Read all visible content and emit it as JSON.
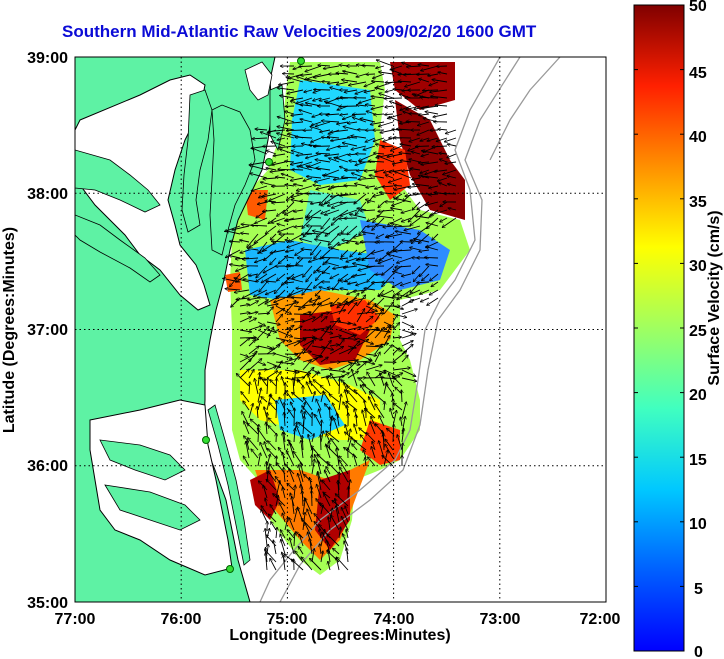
{
  "title": "Southern Mid-Atlantic Raw Velocities 2009/02/20 1600 GMT",
  "xaxis": {
    "label": "Longitude (Degrees:Minutes)",
    "ticks": [
      "77:00",
      "76:00",
      "75:00",
      "74:00",
      "73:00",
      "72:00"
    ],
    "range": [
      -77,
      -72
    ]
  },
  "yaxis": {
    "label": "Latitude (Degrees:Minutes)",
    "ticks": [
      "39:00",
      "38:00",
      "37:00",
      "36:00",
      "35:00"
    ],
    "range": [
      35,
      39
    ]
  },
  "colorbar": {
    "label": "Surface Velocity (cm/s)",
    "ticks": [
      "50",
      "45",
      "40",
      "35",
      "30",
      "25",
      "20",
      "15",
      "10",
      "5",
      "0"
    ],
    "range": [
      0,
      50
    ]
  },
  "colors": {
    "land": "#5ef2a4",
    "coast_line": "#000000",
    "bathymetry": "#9a9a9a",
    "title_color": "#0b0bd6",
    "station_marker": "#33dd33"
  }
}
